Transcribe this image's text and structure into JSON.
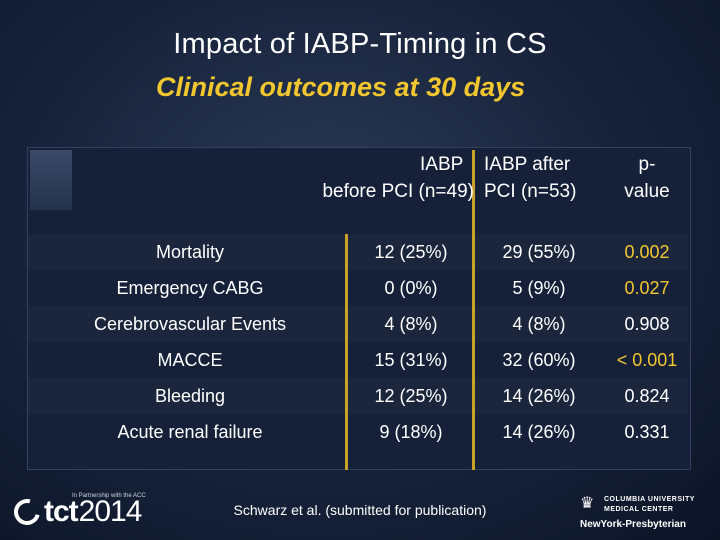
{
  "slide": {
    "title": "Impact of IABP-Timing in CS",
    "subtitle": "Clinical outcomes at 30 days",
    "citation": "Schwarz et al. (submitted for publication)"
  },
  "table": {
    "headers": {
      "col1_line1": "IABP",
      "col1_line2": "before PCI (n=49)",
      "col2_line1": "IABP after",
      "col2_line2": "PCI (n=53)",
      "col3_line1": "p-",
      "col3_line2": "value"
    },
    "rows": [
      {
        "label": "Mortality",
        "before": "12 (25%)",
        "after": "29 (55%)",
        "p": "0.002",
        "significant": true
      },
      {
        "label": "Emergency CABG",
        "before": "0 (0%)",
        "after": "5 (9%)",
        "p": "0.027",
        "significant": true
      },
      {
        "label": "Cerebrovascular Events",
        "before": "4 (8%)",
        "after": "4 (8%)",
        "p": "0.908",
        "significant": false
      },
      {
        "label": "MACCE",
        "before": "15 (31%)",
        "after": "32 (60%)",
        "p": "< 0.001",
        "significant": true
      },
      {
        "label": "Bleeding",
        "before": "12 (25%)",
        "after": "14 (26%)",
        "p": "0.824",
        "significant": false
      },
      {
        "label": "Acute renal failure",
        "before": "9 (18%)",
        "after": "14 (26%)",
        "p": "0.331",
        "significant": false
      }
    ]
  },
  "footer": {
    "tct_logo": "tct",
    "tct_year": "2014",
    "tct_tagline": "In Partnership with the ACC",
    "cu_line1": "COLUMBIA UNIVERSITY",
    "cu_line2": "MEDICAL CENTER",
    "nyp": "NewYork-Presbyterian"
  },
  "colors": {
    "accent_yellow": "#f2c62f",
    "divider_gold": "#c9a227",
    "background": "#17223a"
  }
}
